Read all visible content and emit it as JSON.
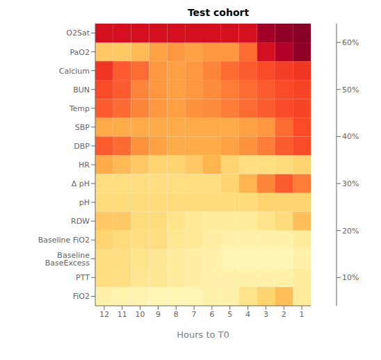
{
  "chart_data": {
    "type": "heatmap",
    "title": "Test cohort",
    "x_label": "Hours to T0",
    "categories": [
      "12",
      "11",
      "10",
      "9",
      "8",
      "7",
      "6",
      "5",
      "4",
      "3",
      "2",
      "1"
    ],
    "y_categories": [
      "O2Sat",
      "PaO2",
      "Calcium",
      "BUN",
      "Temp",
      "SBP",
      "DBP",
      "HR",
      "Δ pH",
      "pH",
      "RDW",
      "Baseline FiO2",
      "Baseline BaseExcess",
      "PTT",
      "FiO2"
    ],
    "values": [
      [
        0.52,
        0.52,
        0.52,
        0.52,
        0.52,
        0.52,
        0.52,
        0.52,
        0.52,
        0.6,
        0.62,
        0.63
      ],
      [
        0.22,
        0.22,
        0.25,
        0.3,
        0.32,
        0.3,
        0.32,
        0.32,
        0.38,
        0.52,
        0.58,
        0.62
      ],
      [
        0.45,
        0.4,
        0.38,
        0.32,
        0.3,
        0.32,
        0.35,
        0.38,
        0.4,
        0.42,
        0.44,
        0.45
      ],
      [
        0.42,
        0.4,
        0.35,
        0.32,
        0.3,
        0.32,
        0.34,
        0.36,
        0.38,
        0.4,
        0.42,
        0.43
      ],
      [
        0.4,
        0.38,
        0.35,
        0.32,
        0.3,
        0.33,
        0.34,
        0.36,
        0.38,
        0.4,
        0.42,
        0.43
      ],
      [
        0.28,
        0.28,
        0.28,
        0.28,
        0.28,
        0.28,
        0.28,
        0.28,
        0.3,
        0.32,
        0.38,
        0.42
      ],
      [
        0.4,
        0.38,
        0.33,
        0.3,
        0.28,
        0.28,
        0.28,
        0.3,
        0.33,
        0.36,
        0.4,
        0.42
      ],
      [
        0.28,
        0.25,
        0.22,
        0.2,
        0.2,
        0.22,
        0.26,
        0.2,
        0.17,
        0.17,
        0.18,
        0.2
      ],
      [
        0.17,
        0.17,
        0.17,
        0.17,
        0.17,
        0.17,
        0.17,
        0.2,
        0.26,
        0.35,
        0.4,
        0.36
      ],
      [
        0.18,
        0.18,
        0.18,
        0.18,
        0.18,
        0.18,
        0.18,
        0.18,
        0.18,
        0.2,
        0.2,
        0.2
      ],
      [
        0.22,
        0.22,
        0.18,
        0.18,
        0.15,
        0.13,
        0.12,
        0.12,
        0.12,
        0.15,
        0.18,
        0.24
      ],
      [
        0.2,
        0.18,
        0.17,
        0.17,
        0.14,
        0.13,
        0.11,
        0.1,
        0.1,
        0.1,
        0.1,
        0.12
      ],
      [
        0.17,
        0.17,
        0.15,
        0.14,
        0.12,
        0.11,
        0.1,
        0.08,
        0.08,
        0.08,
        0.08,
        0.1
      ],
      [
        0.17,
        0.17,
        0.14,
        0.14,
        0.12,
        0.11,
        0.1,
        0.1,
        0.1,
        0.1,
        0.1,
        0.12
      ],
      [
        0.1,
        0.09,
        0.09,
        0.08,
        0.08,
        0.08,
        0.1,
        0.1,
        0.15,
        0.2,
        0.24,
        0.12
      ]
    ],
    "color_range": [
      0.04,
      0.64
    ],
    "color_ticks": [
      {
        "value": 0.1,
        "label": "10%"
      },
      {
        "value": 0.2,
        "label": "20%"
      },
      {
        "value": 0.3,
        "label": "30%"
      },
      {
        "value": 0.4,
        "label": "40%"
      },
      {
        "value": 0.5,
        "label": "50%"
      },
      {
        "value": 0.6,
        "label": "60%"
      }
    ]
  }
}
